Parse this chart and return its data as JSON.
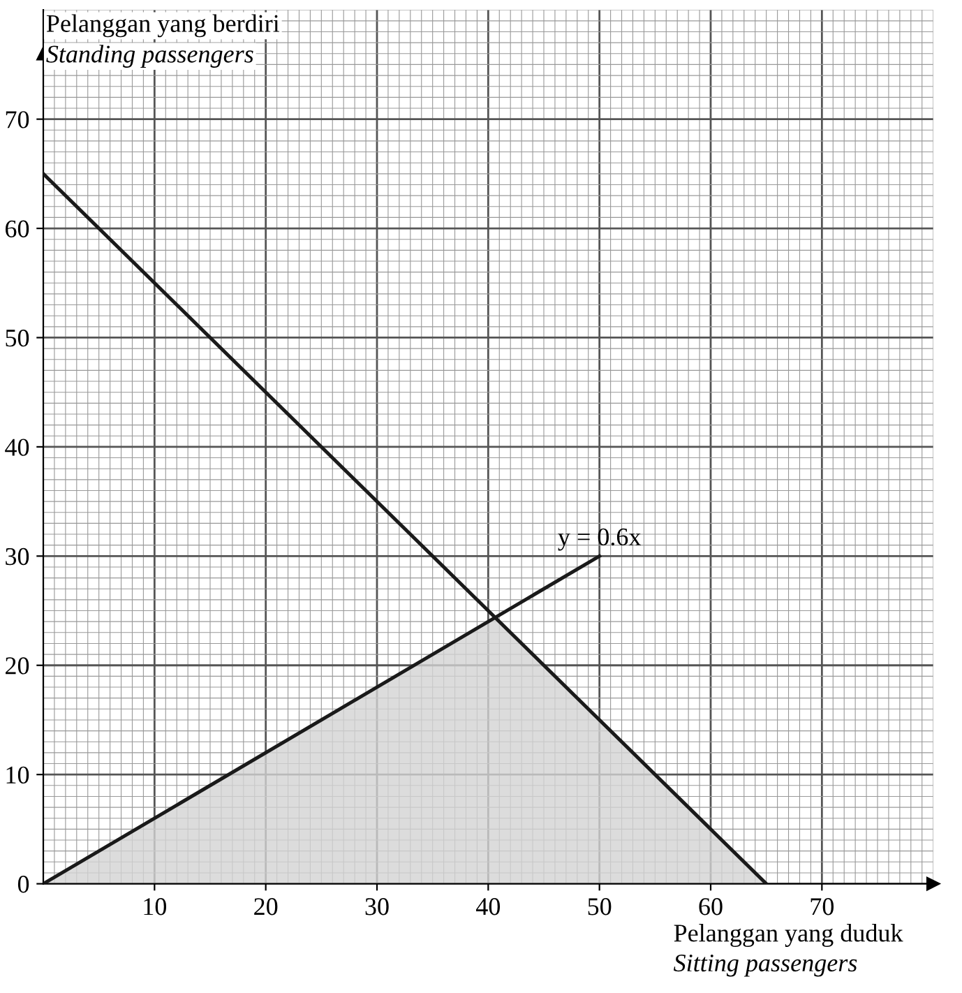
{
  "chart_data": {
    "type": "line",
    "xlabel": "Pelanggan yang duduk\nSitting passengers",
    "ylabel": "Pelanggan yang berdiri\nStanding passengers",
    "series": [
      {
        "type": "area",
        "color": "#d3d3d3",
        "x": [
          0,
          40.6,
          65
        ],
        "values": [
          0,
          24.4,
          0
        ]
      },
      {
        "color": "#1a1a1a",
        "x": [
          0,
          65
        ],
        "values": [
          65,
          0
        ]
      },
      {
        "color": "#1a1a1a",
        "x": [
          0,
          50
        ],
        "values": [
          0,
          30
        ]
      }
    ],
    "annotations": [
      {
        "text": "y = 0.6x",
        "x": 50,
        "y": 30
      }
    ],
    "xlim": [
      0,
      80
    ],
    "ylim": [
      0,
      80
    ],
    "xticks": [
      10,
      20,
      30,
      40,
      50,
      60,
      70
    ],
    "yticks": [
      0,
      10,
      20,
      30,
      40,
      50,
      60,
      70
    ],
    "grid": true,
    "legend": false
  }
}
